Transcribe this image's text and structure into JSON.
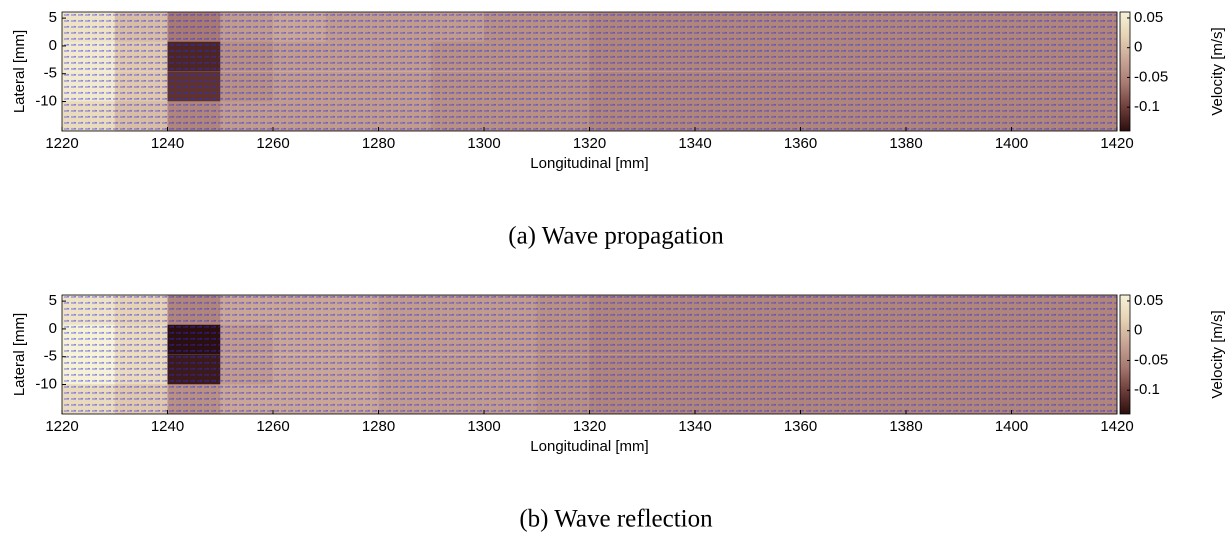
{
  "chart_data": [
    {
      "type": "heatmap",
      "caption": "(a) Wave propagation",
      "xlabel": "Longitudinal [mm]",
      "ylabel": "Lateral [mm]",
      "colorbar_label": "Velocity [m/s]",
      "xlim": [
        1220,
        1420
      ],
      "xticks": [
        1220,
        1240,
        1260,
        1280,
        1300,
        1320,
        1340,
        1360,
        1380,
        1400,
        1420
      ],
      "ylim": [
        -15.3,
        6.1
      ],
      "yticks": [
        -10,
        -5,
        0,
        5
      ],
      "clim": [
        -0.14,
        0.06
      ],
      "cticks": [
        -0.1,
        -0.05,
        0,
        0.05
      ],
      "colormap": [
        "#2b0e0e",
        "#6e3e3a",
        "#a87a72",
        "#c9a696",
        "#e6d3b6",
        "#f6f2d8"
      ],
      "x": [
        1225,
        1235,
        1245,
        1255,
        1265,
        1275,
        1285,
        1295,
        1305,
        1315,
        1325,
        1335,
        1345,
        1355,
        1365,
        1375,
        1385,
        1395,
        1405,
        1415
      ],
      "y": [
        3.4,
        -1.9,
        -7.3,
        -12.6
      ],
      "z": [
        [
          0.04,
          0.0,
          -0.06,
          -0.03,
          -0.02,
          -0.03,
          -0.03,
          -0.03,
          -0.04,
          -0.04,
          -0.05,
          -0.05,
          -0.05,
          -0.05,
          -0.05,
          -0.05,
          -0.05,
          -0.05,
          -0.05,
          -0.05
        ],
        [
          0.05,
          0.01,
          -0.12,
          -0.04,
          -0.03,
          -0.03,
          -0.03,
          -0.04,
          -0.04,
          -0.04,
          -0.05,
          -0.05,
          -0.05,
          -0.05,
          -0.05,
          -0.05,
          -0.05,
          -0.05,
          -0.05,
          -0.05
        ],
        [
          0.05,
          0.01,
          -0.11,
          -0.04,
          -0.03,
          -0.03,
          -0.03,
          -0.04,
          -0.04,
          -0.04,
          -0.05,
          -0.05,
          -0.05,
          -0.05,
          -0.05,
          -0.05,
          -0.05,
          -0.05,
          -0.05,
          -0.05
        ],
        [
          0.03,
          0.0,
          -0.05,
          -0.03,
          -0.03,
          -0.03,
          -0.03,
          -0.04,
          -0.04,
          -0.04,
          -0.05,
          -0.05,
          -0.05,
          -0.05,
          -0.05,
          -0.05,
          -0.05,
          -0.05,
          -0.05,
          -0.05
        ]
      ]
    },
    {
      "type": "heatmap",
      "caption": "(b) Wave reflection",
      "xlabel": "Longitudinal [mm]",
      "ylabel": "Lateral [mm]",
      "colorbar_label": "Velocity [m/s]",
      "xlim": [
        1220,
        1420
      ],
      "xticks": [
        1220,
        1240,
        1260,
        1280,
        1300,
        1320,
        1340,
        1360,
        1380,
        1400,
        1420
      ],
      "ylim": [
        -15.3,
        6.1
      ],
      "yticks": [
        -10,
        -5,
        0,
        5
      ],
      "clim": [
        -0.14,
        0.06
      ],
      "cticks": [
        -0.1,
        -0.05,
        0,
        0.05
      ],
      "colormap": [
        "#2b0e0e",
        "#6e3e3a",
        "#a87a72",
        "#c9a696",
        "#e6d3b6",
        "#f6f2d8"
      ],
      "x": [
        1225,
        1235,
        1245,
        1255,
        1265,
        1275,
        1285,
        1295,
        1305,
        1315,
        1325,
        1335,
        1345,
        1355,
        1365,
        1375,
        1385,
        1395,
        1405,
        1415
      ],
      "y": [
        3.4,
        -1.9,
        -7.3,
        -12.6
      ],
      "z": [
        [
          0.04,
          0.02,
          -0.05,
          -0.02,
          -0.02,
          -0.02,
          -0.03,
          -0.03,
          -0.03,
          -0.04,
          -0.05,
          -0.05,
          -0.05,
          -0.05,
          -0.05,
          -0.05,
          -0.05,
          -0.05,
          -0.05,
          -0.05
        ],
        [
          0.06,
          0.03,
          -0.14,
          -0.03,
          -0.02,
          -0.02,
          -0.03,
          -0.03,
          -0.03,
          -0.04,
          -0.05,
          -0.05,
          -0.05,
          -0.05,
          -0.05,
          -0.05,
          -0.05,
          -0.05,
          -0.05,
          -0.05
        ],
        [
          0.06,
          0.03,
          -0.13,
          -0.03,
          -0.02,
          -0.02,
          -0.03,
          -0.03,
          -0.03,
          -0.04,
          -0.05,
          -0.05,
          -0.05,
          -0.05,
          -0.05,
          -0.05,
          -0.05,
          -0.05,
          -0.05,
          -0.05
        ],
        [
          0.03,
          0.01,
          -0.04,
          -0.02,
          -0.02,
          -0.02,
          -0.03,
          -0.03,
          -0.03,
          -0.04,
          -0.05,
          -0.05,
          -0.05,
          -0.05,
          -0.05,
          -0.05,
          -0.05,
          -0.05,
          -0.05,
          -0.05
        ]
      ]
    }
  ]
}
